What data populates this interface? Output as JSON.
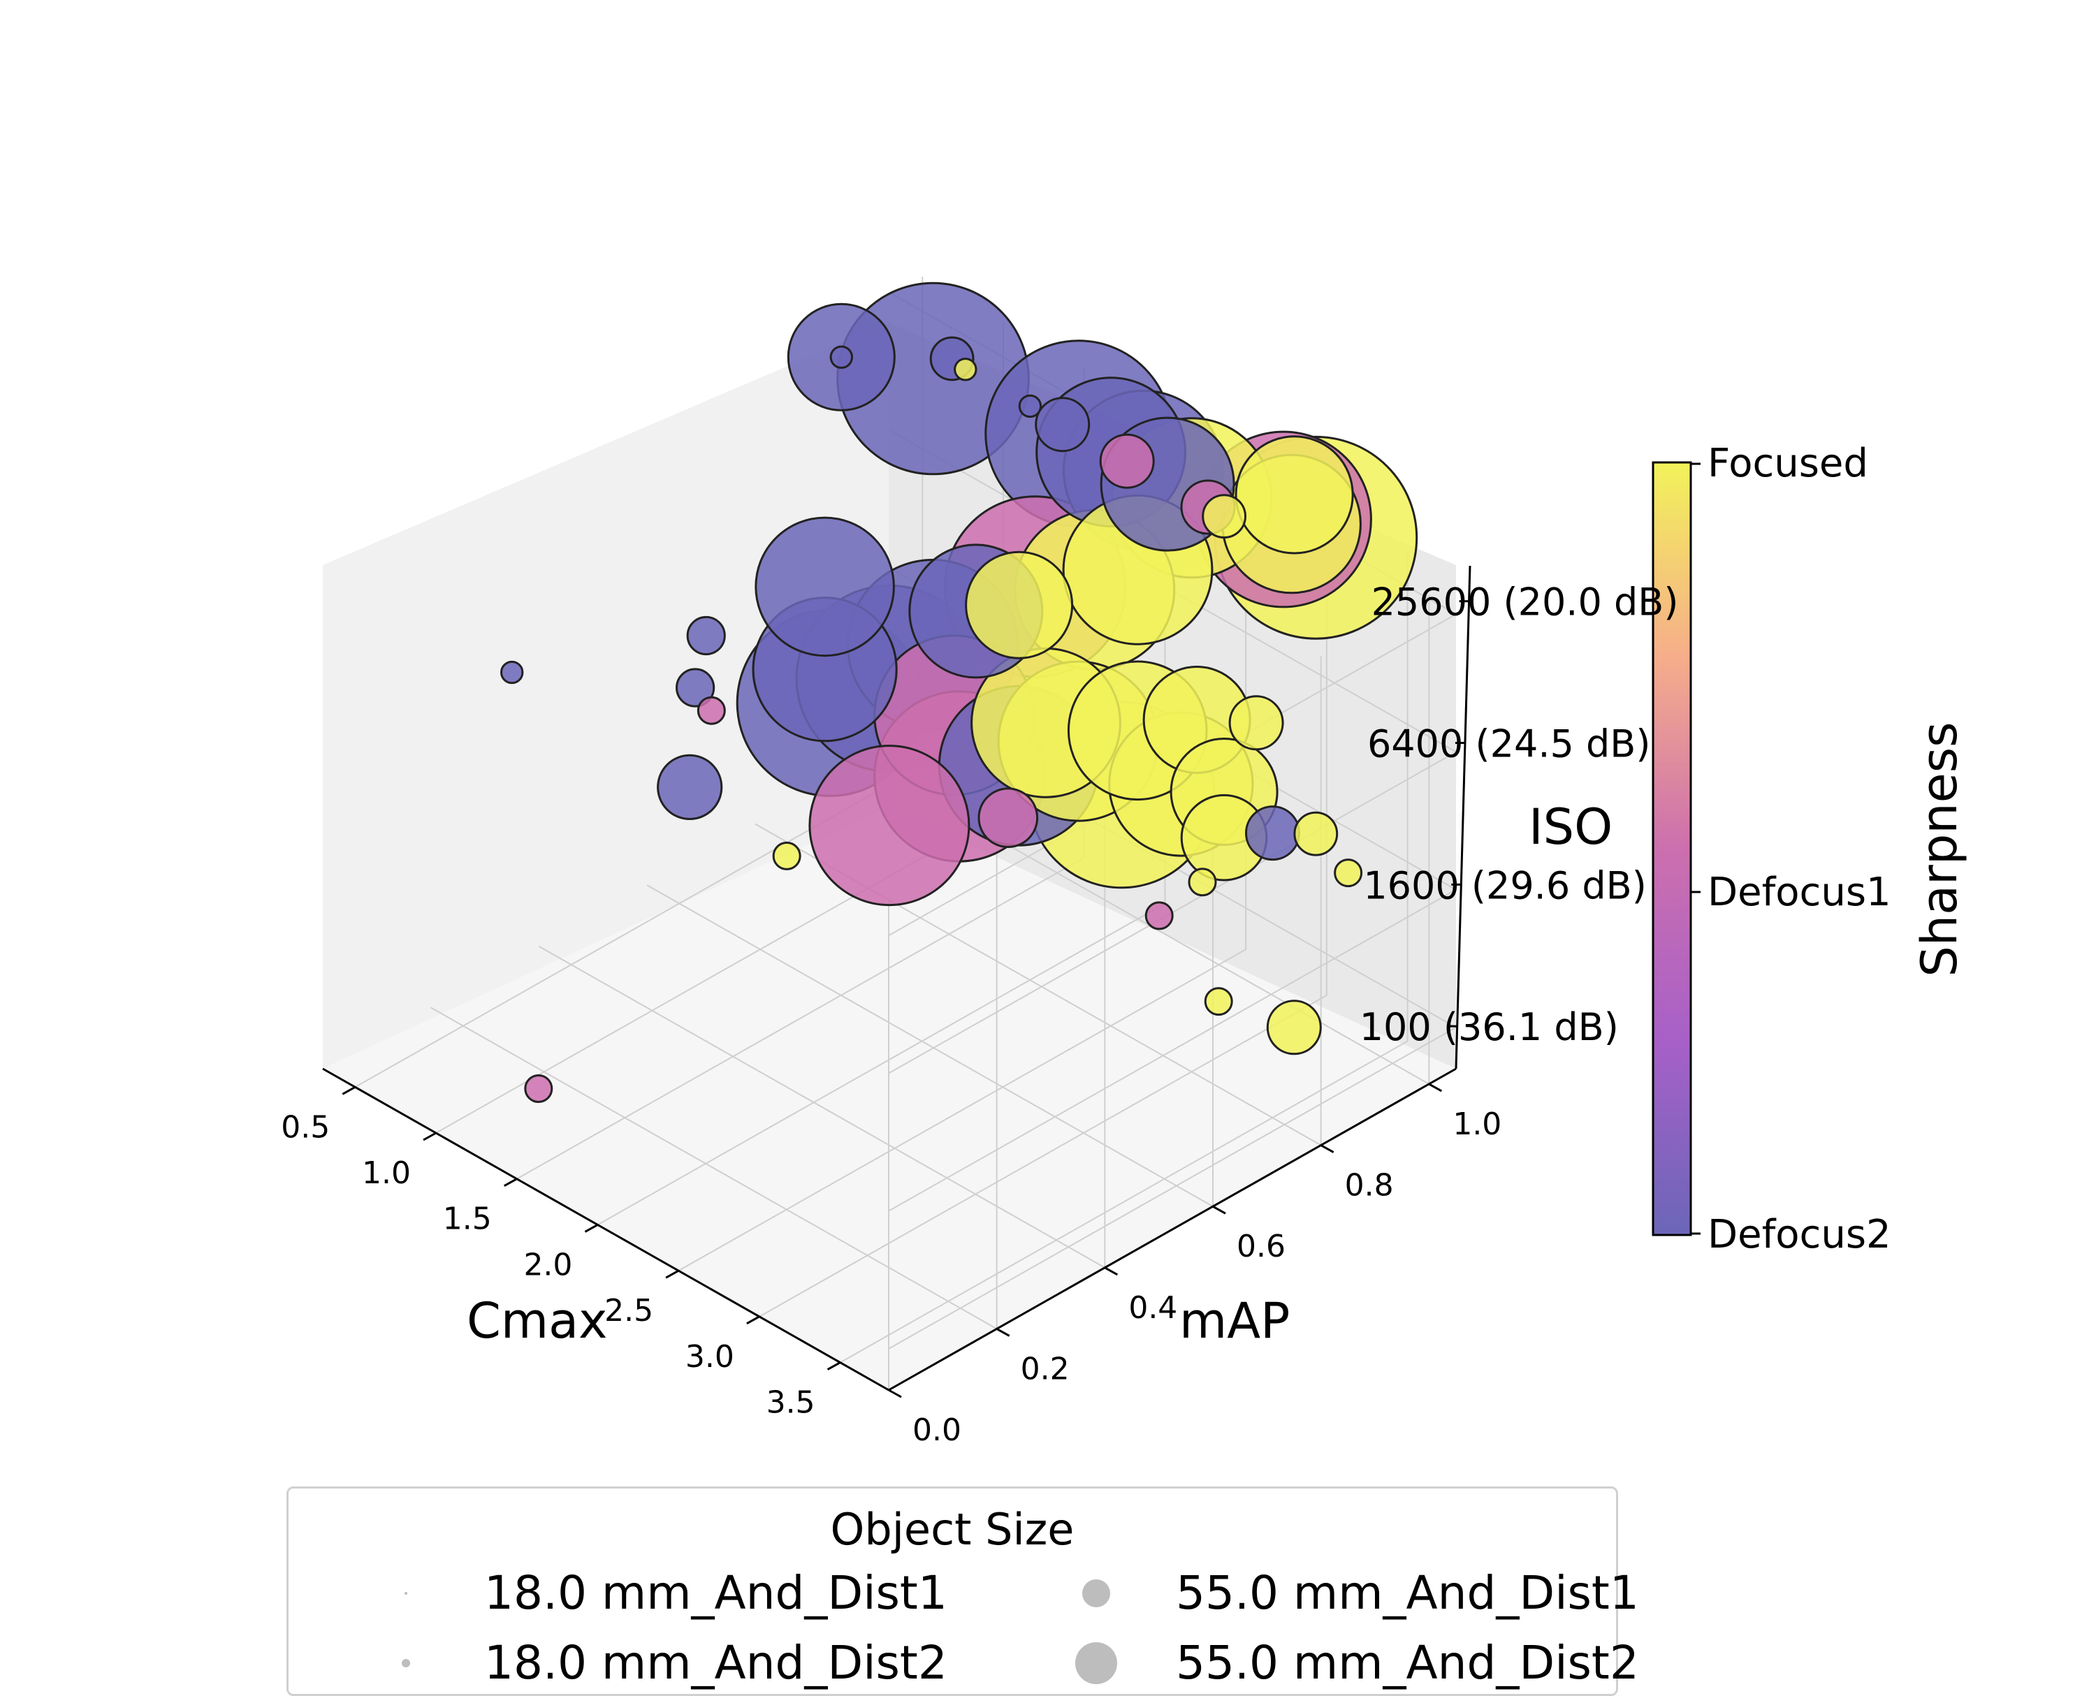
{
  "chart_data": {
    "type": "scatter",
    "projection": "3d",
    "grid": true,
    "title": "",
    "axes": {
      "x": {
        "label": "Cmax",
        "ticks": [
          "0.5",
          "1.0",
          "1.5",
          "2.0",
          "2.5",
          "3.0",
          "3.5"
        ],
        "range": [
          0.3,
          3.8
        ]
      },
      "y": {
        "label": "mAP",
        "ticks": [
          "0.0",
          "0.2",
          "0.4",
          "0.6",
          "0.8",
          "1.0"
        ],
        "range": [
          0.0,
          1.05
        ]
      },
      "z": {
        "label": "ISO",
        "ticks": [
          "100 (36.1 dB)",
          "1600 (29.6 dB)",
          "6400 (24.5 dB)",
          "25600 (20.0 dB)"
        ],
        "range": [
          -0.3,
          3.25
        ]
      }
    },
    "colorbar": {
      "label": "Sharpness",
      "ticks": [
        "Focused",
        "Defocus1",
        "Defocus2"
      ],
      "colormap": "plasma",
      "colors": {
        "Defocus2": "#6b66b8",
        "Defocus1": "#cc6fae",
        "Focused": "#f2f25a"
      }
    },
    "legend": {
      "title": "Object Size",
      "placement": "bottom",
      "items": [
        "18.0 mm_And_Dist1",
        "18.0 mm_And_Dist2",
        "55.0 mm_And_Dist1",
        "55.0 mm_And_Dist2"
      ]
    },
    "series": [
      {
        "iso": "25600 (20.0 dB)",
        "points": [
          {
            "x": 0.5,
            "y": 0.9,
            "z": 3.0,
            "c": "Defocus2",
            "s": 2
          },
          {
            "x": 0.5,
            "y": 0.9,
            "z": 3.0,
            "c": "Defocus2",
            "s": 0.4
          },
          {
            "x": 0.9,
            "y": 0.95,
            "z": 3.0,
            "c": "Defocus2",
            "s": 3.6
          },
          {
            "x": 0.85,
            "y": 1.0,
            "z": 3.0,
            "c": "Defocus2",
            "s": 0.8
          },
          {
            "x": 1.1,
            "y": 0.95,
            "z": 3.2,
            "c": "Focused",
            "s": 0.4
          },
          {
            "x": 1.5,
            "y": 0.95,
            "z": 3.2,
            "c": "Defocus2",
            "s": 0.4
          },
          {
            "x": 1.7,
            "y": 0.95,
            "z": 3.2,
            "c": "Defocus2",
            "s": 1
          },
          {
            "x": 1.8,
            "y": 0.95,
            "z": 3.2,
            "c": "Defocus2",
            "s": 3.5
          },
          {
            "x": 2.0,
            "y": 0.95,
            "z": 3.2,
            "c": "Defocus2",
            "s": 2.8
          },
          {
            "x": 2.1,
            "y": 0.95,
            "z": 3.2,
            "c": "Defocus1",
            "s": 1
          },
          {
            "x": 2.2,
            "y": 0.95,
            "z": 3.2,
            "c": "Defocus2",
            "s": 3
          },
          {
            "x": 2.35,
            "y": 0.95,
            "z": 3.2,
            "c": "Defocus2",
            "s": 2.5
          },
          {
            "x": 2.5,
            "y": 0.95,
            "z": 3.2,
            "c": "Focused",
            "s": 3
          },
          {
            "x": 2.6,
            "y": 0.95,
            "z": 3.2,
            "c": "Defocus1",
            "s": 1
          },
          {
            "x": 2.7,
            "y": 0.95,
            "z": 3.2,
            "c": "Focused",
            "s": 0.8
          },
          {
            "x": 2.9,
            "y": 1.0,
            "z": 3.2,
            "c": "Defocus1",
            "s": 3.3
          },
          {
            "x": 2.95,
            "y": 1.0,
            "z": 3.2,
            "c": "Focused",
            "s": 2.6
          },
          {
            "x": 3.1,
            "y": 1.0,
            "z": 3.2,
            "c": "Focused",
            "s": 3.8
          },
          {
            "x": 2.8,
            "y": 1.05,
            "z": 3.2,
            "c": "Focused",
            "s": 2.2
          }
        ]
      },
      {
        "iso": "6400 (24.5 dB)",
        "points": [
          {
            "x": 0.3,
            "y": 0.35,
            "z": 1.8,
            "c": "Defocus2",
            "s": 0.4
          },
          {
            "x": 1.1,
            "y": 0.45,
            "z": 2.0,
            "c": "Defocus2",
            "s": 0.7
          },
          {
            "x": 1.0,
            "y": 0.5,
            "z": 2.2,
            "c": "Defocus2",
            "s": 0.7
          },
          {
            "x": 1.4,
            "y": 0.6,
            "z": 2.6,
            "c": "Defocus2",
            "s": 2.6
          },
          {
            "x": 1.4,
            "y": 0.6,
            "z": 2.0,
            "c": "Defocus2",
            "s": 2.7
          },
          {
            "x": 1.6,
            "y": 0.55,
            "z": 2.0,
            "c": "Defocus2",
            "s": 3.5
          },
          {
            "x": 1.8,
            "y": 0.6,
            "z": 2.2,
            "c": "Defocus2",
            "s": 3.5
          },
          {
            "x": 1.9,
            "y": 0.65,
            "z": 2.4,
            "c": "Defocus2",
            "s": 3.2
          },
          {
            "x": 2.0,
            "y": 0.7,
            "z": 2.6,
            "c": "Defocus2",
            "s": 2.5
          },
          {
            "x": 2.2,
            "y": 0.75,
            "z": 2.8,
            "c": "Defocus1",
            "s": 3.4
          },
          {
            "x": 2.4,
            "y": 0.8,
            "z": 2.8,
            "c": "Focused",
            "s": 3.0
          },
          {
            "x": 2.5,
            "y": 0.85,
            "z": 2.9,
            "c": "Focused",
            "s": 2.8
          },
          {
            "x": 2.2,
            "y": 0.6,
            "z": 2.2,
            "c": "Defocus1",
            "s": 3.0
          },
          {
            "x": 2.4,
            "y": 0.55,
            "z": 2.0,
            "c": "Defocus1",
            "s": 3.2
          },
          {
            "x": 2.6,
            "y": 0.6,
            "z": 2.1,
            "c": "Defocus2",
            "s": 3.0
          },
          {
            "x": 2.8,
            "y": 0.65,
            "z": 2.3,
            "c": "Focused",
            "s": 3.0
          },
          {
            "x": 3.0,
            "y": 0.7,
            "z": 2.4,
            "c": "Focused",
            "s": 2.6
          },
          {
            "x": 3.2,
            "y": 0.75,
            "z": 2.5,
            "c": "Focused",
            "s": 2.0
          },
          {
            "x": 3.4,
            "y": 0.8,
            "z": 2.5,
            "c": "Focused",
            "s": 1.0
          },
          {
            "x": 2.3,
            "y": 0.45,
            "z": 1.8,
            "c": "Defocus1",
            "s": 3.0
          },
          {
            "x": 2.0,
            "y": 0.35,
            "z": 1.6,
            "c": "Focused",
            "s": 0.5
          },
          {
            "x": 1.4,
            "y": 0.35,
            "z": 1.7,
            "c": "Defocus2",
            "s": 1.2
          },
          {
            "x": 1.2,
            "y": 0.45,
            "z": 1.9,
            "c": "Defocus1",
            "s": 0.5
          },
          {
            "x": 2.7,
            "y": 0.55,
            "z": 1.9,
            "c": "Defocus1",
            "s": 1.1
          },
          {
            "x": 2.6,
            "y": 0.65,
            "z": 2.3,
            "c": "Focused",
            "s": 2.8
          },
          {
            "x": 2.1,
            "y": 0.75,
            "z": 2.6,
            "c": "Focused",
            "s": 2.0
          }
        ]
      },
      {
        "iso": "1600 (29.6 dB)",
        "points": [
          {
            "x": 2.4,
            "y": 0.85,
            "z": 1.2,
            "c": "Focused",
            "s": 3.5
          },
          {
            "x": 2.6,
            "y": 0.9,
            "z": 1.3,
            "c": "Focused",
            "s": 2.7
          },
          {
            "x": 2.7,
            "y": 0.95,
            "z": 1.2,
            "c": "Focused",
            "s": 2.0
          },
          {
            "x": 2.8,
            "y": 0.92,
            "z": 1.0,
            "c": "Focused",
            "s": 1.6
          },
          {
            "x": 3.0,
            "y": 0.95,
            "z": 1.1,
            "c": "Defocus2",
            "s": 1.0
          },
          {
            "x": 3.1,
            "y": 1.0,
            "z": 1.05,
            "c": "Focused",
            "s": 0.8
          },
          {
            "x": 3.3,
            "y": 1.0,
            "z": 0.9,
            "c": "Focused",
            "s": 0.5
          },
          {
            "x": 2.9,
            "y": 0.85,
            "z": 0.9,
            "c": "Focused",
            "s": 0.5
          },
          {
            "x": 2.8,
            "y": 0.8,
            "z": 0.7,
            "c": "Defocus1",
            "s": 0.5
          }
        ]
      },
      {
        "iso": "100 (36.1 dB)",
        "points": [
          {
            "x": 1.3,
            "y": 0.1,
            "z": 0.0,
            "c": "Defocus1",
            "s": 0.5
          },
          {
            "x": 3.3,
            "y": 0.9,
            "z": 0.0,
            "c": "Focused",
            "s": 1.0
          },
          {
            "x": 3.0,
            "y": 0.85,
            "z": 0.1,
            "c": "Focused",
            "s": 0.5
          }
        ]
      }
    ]
  }
}
